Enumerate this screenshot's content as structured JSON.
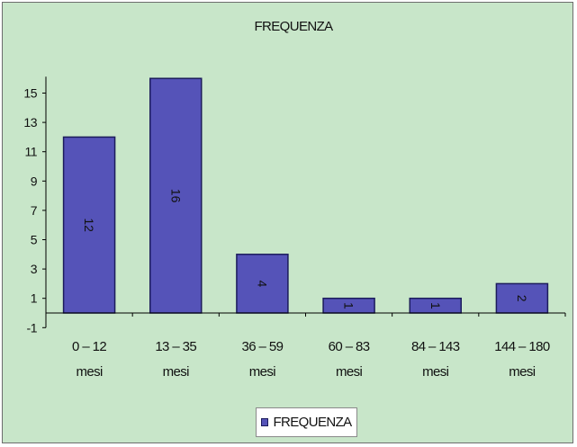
{
  "colors": {
    "background": "#c8e6c9",
    "bar_fill": "#5553b8",
    "bar_stroke": "#1c1c5c"
  },
  "chart_data": {
    "type": "bar",
    "title": "FREQUENZA",
    "categories": [
      [
        "0 – 12",
        "mesi"
      ],
      [
        "13 – 35",
        "mesi"
      ],
      [
        "36 – 59",
        "mesi"
      ],
      [
        "60 – 83",
        "mesi"
      ],
      [
        "84 – 143",
        "mesi"
      ],
      [
        "144 – 180",
        "mesi"
      ]
    ],
    "series": [
      {
        "name": "FREQUENZA",
        "values": [
          12,
          16,
          4,
          1,
          1,
          2
        ]
      }
    ],
    "data_labels": [
      "12",
      "16",
      "4",
      "1",
      "1",
      "2"
    ],
    "yticks": [
      "-1",
      "1",
      "3",
      "5",
      "7",
      "9",
      "11",
      "13",
      "15"
    ],
    "ylim": [
      -1,
      16
    ],
    "grid": false,
    "legend": {
      "position": "bottom",
      "label": "FREQUENZA"
    }
  }
}
